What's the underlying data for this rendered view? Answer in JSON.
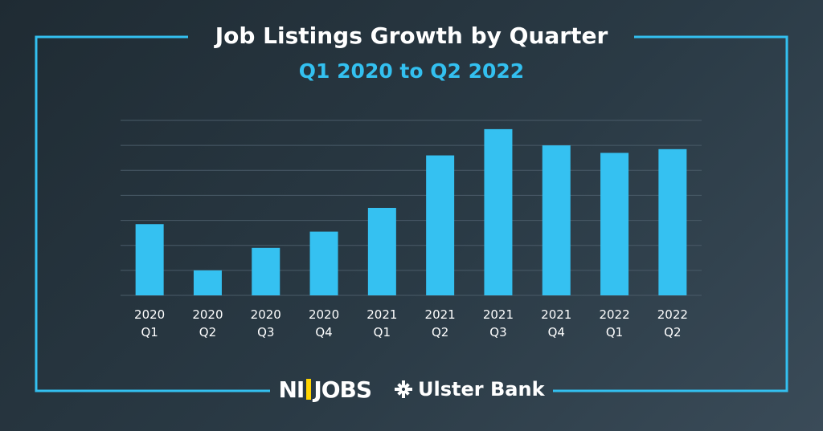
{
  "colors": {
    "accent": "#33c0f0",
    "bar": "#35c1f1",
    "text": "#ffffff",
    "grid": "#4a5b68",
    "logo_yellow": "#ffd400"
  },
  "logos": {
    "nijobs_left": "NI",
    "nijobs_right": "JOBS",
    "ulster": "Ulster Bank",
    "ulster_icon": "ulster-bank-emblem-icon"
  },
  "chart_data": {
    "type": "bar",
    "title": "Job Listings Growth by Quarter",
    "subtitle": "Q1 2020 to Q2 2022",
    "categories": [
      [
        "2020",
        "Q1"
      ],
      [
        "2020",
        "Q2"
      ],
      [
        "2020",
        "Q3"
      ],
      [
        "2020",
        "Q4"
      ],
      [
        "2021",
        "Q1"
      ],
      [
        "2021",
        "Q2"
      ],
      [
        "2021",
        "Q3"
      ],
      [
        "2021",
        "Q4"
      ],
      [
        "2022",
        "Q1"
      ],
      [
        "2022",
        "Q2"
      ]
    ],
    "values": [
      2.85,
      1.0,
      1.9,
      2.55,
      3.5,
      5.6,
      6.65,
      6.0,
      5.7,
      5.85
    ],
    "ylim": [
      0,
      7
    ],
    "grid_step": 1,
    "grid": true,
    "y_tick_labels": false,
    "xlabel": "",
    "ylabel": ""
  }
}
